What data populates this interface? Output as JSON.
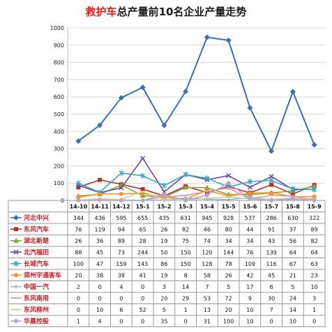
{
  "title": {
    "highlight": "救护车",
    "rest": "总产量前10名企业产量走势"
  },
  "chart_data": {
    "type": "line",
    "categories": [
      "14-10",
      "14-11",
      "14-12",
      "15-1",
      "15-2",
      "15-3",
      "15-4",
      "15-5",
      "15-6",
      "15-7",
      "15-8",
      "15-9"
    ],
    "ylim": [
      0,
      1000
    ],
    "yticks": [
      0,
      100,
      200,
      300,
      400,
      500,
      600,
      700,
      800,
      900,
      1000
    ],
    "grid": true,
    "legend": "table-below",
    "series": [
      {
        "name": "河北中兴",
        "color": "#3a6fb3",
        "marker": "diamond",
        "values": [
          344,
          436,
          595,
          655,
          435,
          631,
          945,
          928,
          537,
          286,
          630,
          322
        ]
      },
      {
        "name": "东风汽车",
        "color": "#b3312c",
        "marker": "square",
        "values": [
          76,
          119,
          94,
          65,
          26,
          82,
          46,
          80,
          44,
          91,
          37,
          89
        ]
      },
      {
        "name": "湖北新楚",
        "color": "#8aa636",
        "marker": "triangle",
        "values": [
          26,
          36,
          89,
          28,
          19,
          75,
          74,
          34,
          34,
          43,
          56,
          82
        ]
      },
      {
        "name": "北汽福田",
        "color": "#6a4a9c",
        "marker": "x",
        "values": [
          88,
          45,
          73,
          244,
          50,
          150,
          120,
          144,
          76,
          139,
          64,
          64
        ]
      },
      {
        "name": "长城汽车",
        "color": "#3aa6c4",
        "marker": "star",
        "values": [
          100,
          47,
          159,
          143,
          86,
          150,
          128,
          78,
          109,
          116,
          67,
          63
        ]
      },
      {
        "name": "郑州宇通客车",
        "color": "#f0952e",
        "marker": "circle",
        "values": [
          20,
          38,
          38,
          41,
          19,
          8,
          58,
          26,
          42,
          45,
          21,
          23
        ]
      },
      {
        "name": "中国一汽",
        "color": "#98b4dc",
        "marker": "plus",
        "values": [
          2,
          0,
          4,
          0,
          3,
          14,
          7,
          5,
          17,
          6,
          5,
          10
        ]
      },
      {
        "name": "东风南用",
        "color": "#e39a9a",
        "marker": "dash",
        "values": [
          0,
          0,
          0,
          0,
          20,
          29,
          53,
          72,
          9,
          30,
          24,
          3
        ]
      },
      {
        "name": "东风柳州",
        "color": "#c4d89a",
        "marker": "dash",
        "values": [
          0,
          10,
          6,
          52,
          5,
          1,
          13,
          20,
          10,
          7,
          14,
          1
        ]
      },
      {
        "name": "华晨控股",
        "color": "#b6a6cf",
        "marker": "circle",
        "values": [
          1,
          4,
          0,
          0,
          35,
          0,
          31,
          100,
          10,
          0,
          10,
          0
        ]
      }
    ]
  }
}
